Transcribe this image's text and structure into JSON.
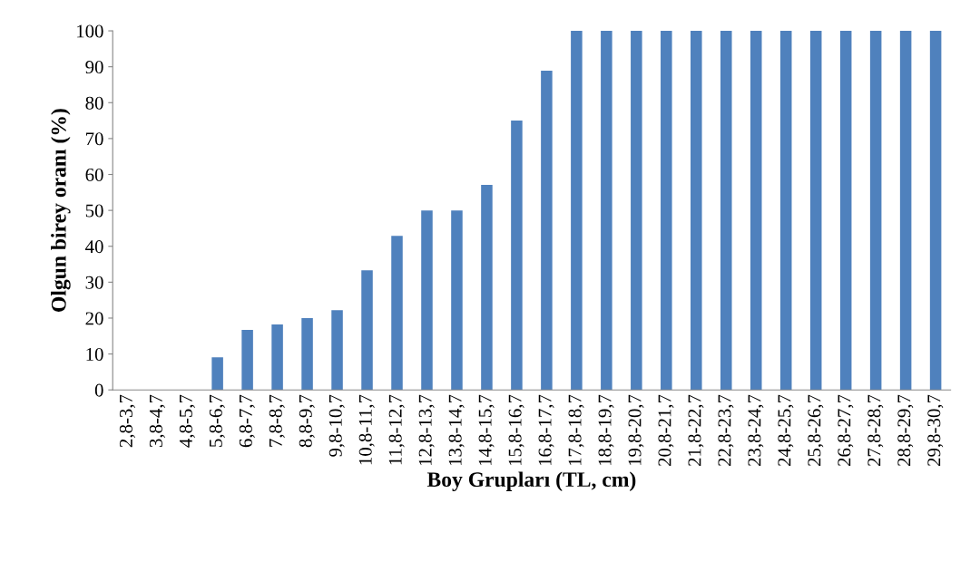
{
  "chart_data": {
    "type": "bar",
    "xlabel": "Boy Grupları (TL, cm)",
    "ylabel": "Olgun birey oranı (%)",
    "categories": [
      "2,8-3,7",
      "3,8-4,7",
      "4,8-5,7",
      "5,8-6,7",
      "6,8-7,7",
      "7,8-8,7",
      "8,8-9,7",
      "9,8-10,7",
      "10,8-11,7",
      "11,8-12,7",
      "12,8-13,7",
      "13,8-14,7",
      "14,8-15,7",
      "15,8-16,7",
      "16,8-17,7",
      "17,8-18,7",
      "18,8-19,7",
      "19,8-20,7",
      "20,8-21,7",
      "21,8-22,7",
      "22,8-23,7",
      "23,8-24,7",
      "24,8-25,7",
      "25,8-26,7",
      "26,8-27,7",
      "27,8-28,7",
      "28,8-29,7",
      "29,8-30,7"
    ],
    "values": [
      0,
      0,
      0,
      9.1,
      16.7,
      18.2,
      20,
      22.2,
      33.3,
      42.9,
      50,
      50,
      57.1,
      75,
      88.9,
      100,
      100,
      100,
      100,
      100,
      100,
      100,
      100,
      100,
      100,
      100,
      100,
      100
    ],
    "color": "#4f81bd",
    "ylim": [
      0,
      100
    ],
    "yticks": [
      0,
      10,
      20,
      30,
      40,
      50,
      60,
      70,
      80,
      90,
      100
    ],
    "grid": false,
    "legend": false
  }
}
